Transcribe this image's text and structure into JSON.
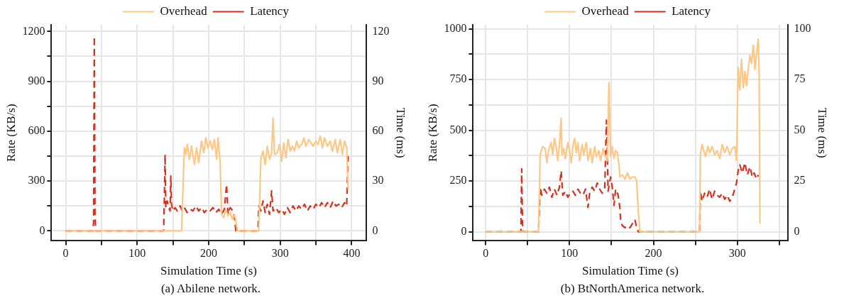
{
  "chart_data": [
    {
      "type": "line",
      "xlabel": "Simulation Time (s)",
      "ylabel": "Rate (KB/s)",
      "y2label": "Time (ms)",
      "annotations": [
        "(a) Abilene network."
      ],
      "legend": "top",
      "grid": true,
      "xlim": [
        -20,
        420
      ],
      "xticks": [
        0,
        {
          "value": 50,
          "label": null
        },
        100,
        {
          "value": 150,
          "label": null
        },
        200,
        {
          "value": 250,
          "label": null
        },
        300,
        {
          "value": 350,
          "label": null
        },
        400
      ],
      "ylim": [
        -60,
        1240
      ],
      "yticks": [
        0,
        {
          "value": 150,
          "label": null
        },
        300,
        {
          "value": 450,
          "label": null
        },
        600,
        {
          "value": 750,
          "label": null
        },
        900,
        {
          "value": 1050,
          "label": null
        },
        1200
      ],
      "y2lim": [
        -6,
        124
      ],
      "y2ticks": [
        0,
        30,
        60,
        90,
        120
      ],
      "series": [
        {
          "name": "Overhead",
          "color": "#fdc785",
          "line_style": "solid",
          "x": [
            0,
            162,
            166,
            168,
            170,
            173,
            176,
            180,
            183,
            186,
            190,
            193,
            196,
            199,
            202,
            205,
            208,
            211,
            213,
            216,
            218,
            221,
            224,
            227,
            230,
            233,
            236,
            238,
            240,
            270,
            273,
            276,
            279,
            282,
            285,
            288,
            290,
            292,
            296,
            299,
            302,
            305,
            308,
            311,
            314,
            317,
            320,
            323,
            326,
            330,
            333,
            336,
            340,
            343,
            346,
            350,
            353,
            356,
            359,
            362,
            366,
            370,
            373,
            377,
            380,
            384,
            387,
            390,
            393,
            395
          ],
          "values": [
            0,
            0,
            500,
            460,
            520,
            430,
            510,
            400,
            500,
            410,
            540,
            470,
            560,
            500,
            540,
            490,
            550,
            430,
            560,
            420,
            100,
            80,
            130,
            90,
            110,
            70,
            100,
            60,
            0,
            0,
            440,
            480,
            400,
            510,
            430,
            470,
            680,
            460,
            470,
            520,
            420,
            530,
            440,
            550,
            480,
            510,
            480,
            540,
            500,
            520,
            560,
            510,
            550,
            530,
            510,
            540,
            520,
            570,
            500,
            560,
            510,
            540,
            480,
            550,
            470,
            550,
            460,
            540,
            500,
            250
          ]
        },
        {
          "name": "Latency",
          "color": "#d7301f",
          "line_style": "dashed",
          "axis": "y2",
          "x": [
            0,
            38,
            39,
            40,
            41,
            42,
            137,
            138,
            139,
            140,
            142,
            144,
            146,
            147,
            148,
            150,
            153,
            156,
            160,
            163,
            166,
            170,
            174,
            178,
            182,
            186,
            190,
            194,
            198,
            202,
            206,
            210,
            214,
            218,
            222,
            225,
            227,
            230,
            234,
            236,
            238,
            269,
            270,
            273,
            276,
            279,
            282,
            285,
            288,
            290,
            294,
            298,
            302,
            306,
            310,
            314,
            318,
            322,
            326,
            330,
            334,
            338,
            342,
            346,
            350,
            354,
            358,
            362,
            366,
            370,
            374,
            378,
            382,
            386,
            390,
            393,
            395
          ],
          "values": [
            0,
            0,
            5,
            117,
            10,
            0,
            0,
            20,
            46,
            14,
            18,
            14,
            12,
            33,
            16,
            12,
            14,
            12,
            15,
            12,
            14,
            11,
            13,
            12,
            15,
            12,
            14,
            11,
            13,
            12,
            14,
            11,
            13,
            10,
            13,
            28,
            10,
            14,
            12,
            8,
            0,
            0,
            15,
            12,
            18,
            11,
            16,
            10,
            24,
            12,
            14,
            11,
            13,
            10,
            14,
            11,
            15,
            12,
            15,
            13,
            16,
            12,
            15,
            13,
            16,
            14,
            17,
            14,
            17,
            14,
            18,
            15,
            16,
            14,
            17,
            15,
            45
          ]
        }
      ]
    },
    {
      "type": "line",
      "xlabel": "Simulation Time (s)",
      "ylabel": "Rate (KB/s)",
      "y2label": "Time (ms)",
      "annotations": [
        "(b) BtNorthAmerica network."
      ],
      "legend": "top",
      "grid": true,
      "xlim": [
        -15,
        360
      ],
      "xticks": [
        0,
        {
          "value": 50,
          "label": null
        },
        100,
        {
          "value": 150,
          "label": null
        },
        200,
        {
          "value": 250,
          "label": null
        },
        300,
        {
          "value": 350,
          "label": null
        }
      ],
      "ylim": [
        -45,
        1020
      ],
      "yticks": [
        0,
        {
          "value": 125,
          "label": null
        },
        250,
        {
          "value": 375,
          "label": null
        },
        500,
        {
          "value": 625,
          "label": null
        },
        750,
        {
          "value": 875,
          "label": null
        },
        1000
      ],
      "y2lim": [
        -4.5,
        102
      ],
      "y2ticks": [
        0,
        25,
        50,
        75,
        100
      ],
      "series": [
        {
          "name": "Overhead",
          "color": "#fdc785",
          "line_style": "solid",
          "x": [
            0,
            63,
            65,
            68,
            71,
            73,
            75,
            78,
            80,
            82,
            84,
            86,
            88,
            90,
            91,
            93,
            95,
            98,
            100,
            102,
            104,
            106,
            108,
            110,
            112,
            115,
            117,
            120,
            122,
            125,
            127,
            130,
            132,
            135,
            137,
            140,
            142,
            145,
            147,
            149,
            151,
            153,
            155,
            157,
            159,
            160,
            163,
            166,
            169,
            172,
            175,
            178,
            180,
            182,
            184,
            255,
            256,
            258,
            260,
            262,
            265,
            267,
            270,
            273,
            276,
            279,
            282,
            285,
            288,
            291,
            294,
            297,
            299,
            301,
            303,
            305,
            307,
            309,
            311,
            313,
            315,
            317,
            319,
            321,
            323,
            325,
            326,
            327
          ],
          "values": [
            0,
            0,
            380,
            420,
            410,
            340,
            400,
            440,
            380,
            460,
            420,
            350,
            430,
            560,
            380,
            410,
            360,
            440,
            400,
            340,
            420,
            460,
            390,
            440,
            350,
            430,
            380,
            440,
            350,
            410,
            340,
            420,
            370,
            400,
            350,
            410,
            380,
            350,
            735,
            370,
            420,
            360,
            400,
            390,
            330,
            270,
            280,
            260,
            290,
            260,
            270,
            270,
            250,
            100,
            0,
            0,
            380,
            430,
            400,
            370,
            420,
            390,
            420,
            380,
            400,
            360,
            430,
            390,
            420,
            380,
            410,
            420,
            350,
            810,
            700,
            850,
            710,
            790,
            720,
            800,
            870,
            830,
            920,
            800,
            880,
            950,
            780,
            40
          ]
        },
        {
          "name": "Latency",
          "color": "#d7301f",
          "line_style": "dashed",
          "axis": "y2",
          "x": [
            0,
            42,
            43,
            44,
            45,
            63,
            65,
            67,
            70,
            73,
            76,
            79,
            82,
            85,
            88,
            90,
            92,
            95,
            98,
            101,
            104,
            107,
            110,
            113,
            116,
            119,
            122,
            124,
            127,
            130,
            133,
            136,
            139,
            142,
            144,
            146,
            149,
            151,
            153,
            155,
            158,
            160,
            161,
            163,
            166,
            169,
            172,
            175,
            178,
            180,
            182,
            255,
            256,
            258,
            261,
            264,
            267,
            270,
            273,
            276,
            279,
            282,
            285,
            288,
            291,
            294,
            297,
            299,
            301,
            303,
            306,
            309,
            312,
            315,
            318,
            320,
            323,
            325
          ],
          "values": [
            0,
            0,
            31,
            1,
            0,
            0,
            22,
            18,
            21,
            19,
            22,
            17,
            21,
            18,
            22,
            30,
            18,
            20,
            17,
            19,
            20,
            18,
            21,
            19,
            18,
            21,
            12,
            19,
            22,
            20,
            24,
            21,
            19,
            22,
            55,
            20,
            27,
            22,
            13,
            21,
            18,
            12,
            5,
            3,
            2,
            3,
            2,
            4,
            6,
            2,
            0,
            0,
            20,
            15,
            19,
            17,
            21,
            16,
            20,
            18,
            17,
            19,
            16,
            18,
            15,
            17,
            21,
            24,
            30,
            33,
            29,
            34,
            28,
            32,
            27,
            29,
            26,
            28
          ]
        }
      ]
    }
  ]
}
